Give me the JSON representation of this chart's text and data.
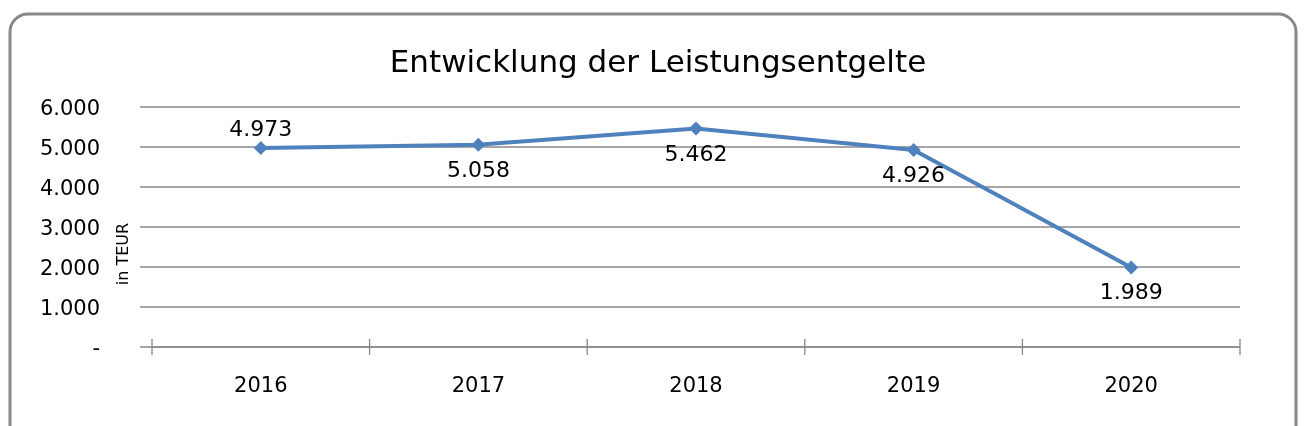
{
  "chart_data": {
    "type": "line",
    "title": "Entwicklung der Leistungsentgelte",
    "ylabel": "in TEUR",
    "categories": [
      "2016",
      "2017",
      "2018",
      "2019",
      "2020"
    ],
    "series": [
      {
        "color": "#4f81bd",
        "values": [
          4973,
          5058,
          5462,
          4926,
          1989
        ],
        "value_labels": [
          "4.973",
          "5.058",
          "5.462",
          "4.926",
          "1.989"
        ]
      }
    ],
    "ylim": [
      0,
      6000
    ],
    "yticks": [
      {
        "value": 0,
        "label": "-"
      },
      {
        "value": 1000,
        "label": "1.000"
      },
      {
        "value": 2000,
        "label": "2.000"
      },
      {
        "value": 3000,
        "label": "3.000"
      },
      {
        "value": 4000,
        "label": "4.000"
      },
      {
        "value": 5000,
        "label": "5.000"
      },
      {
        "value": 6000,
        "label": "6.000"
      }
    ],
    "grid": "y",
    "marker": "diamond",
    "line_style": "solid"
  }
}
